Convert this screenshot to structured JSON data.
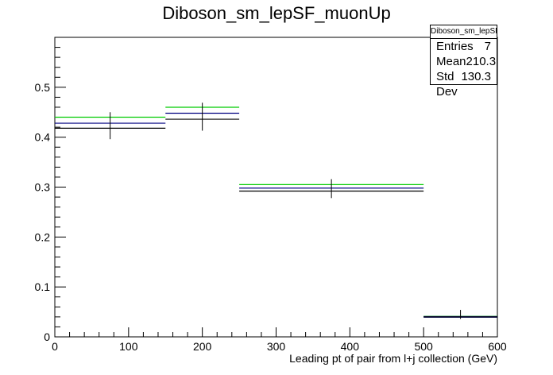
{
  "title": "Diboson_sm_lepSF_muonUp",
  "stats_box": {
    "name": "Diboson_sm_lepSF_muonUp",
    "rows": [
      {
        "label": "Entries",
        "value": "7"
      },
      {
        "label": "Mean",
        "value": "210.3"
      },
      {
        "label": "Std Dev",
        "value": "130.3"
      }
    ]
  },
  "chart_data": {
    "type": "line",
    "xlabel": "Leading pt of pair from l+j collection (GeV)",
    "ylabel": "",
    "xlim": [
      0,
      600
    ],
    "ylim": [
      0,
      0.6
    ],
    "xticks": [
      0,
      100,
      200,
      300,
      400,
      500,
      600
    ],
    "yticks": [
      0,
      0.1,
      0.2,
      0.3,
      0.4,
      0.5
    ],
    "xtick_labels": [
      "0",
      "100",
      "200",
      "300",
      "400",
      "500",
      "600"
    ],
    "ytick_labels": [
      "0",
      "0.1",
      "0.2",
      "0.3",
      "0.4",
      "0.5"
    ],
    "bins": [
      [
        0,
        150
      ],
      [
        150,
        250
      ],
      [
        250,
        500
      ],
      [
        500,
        600
      ]
    ],
    "series": [
      {
        "color": "#00cc00",
        "values": [
          0.44,
          0.46,
          0.305,
          0.041
        ]
      },
      {
        "color": "#000080",
        "values": [
          0.428,
          0.448,
          0.298,
          0.04
        ]
      },
      {
        "color": "#000000",
        "values": [
          0.418,
          0.436,
          0.292,
          0.04
        ],
        "errors": [
          0.022,
          0.023,
          0.014,
          0.004
        ]
      }
    ],
    "grid": false,
    "legend": "none"
  }
}
